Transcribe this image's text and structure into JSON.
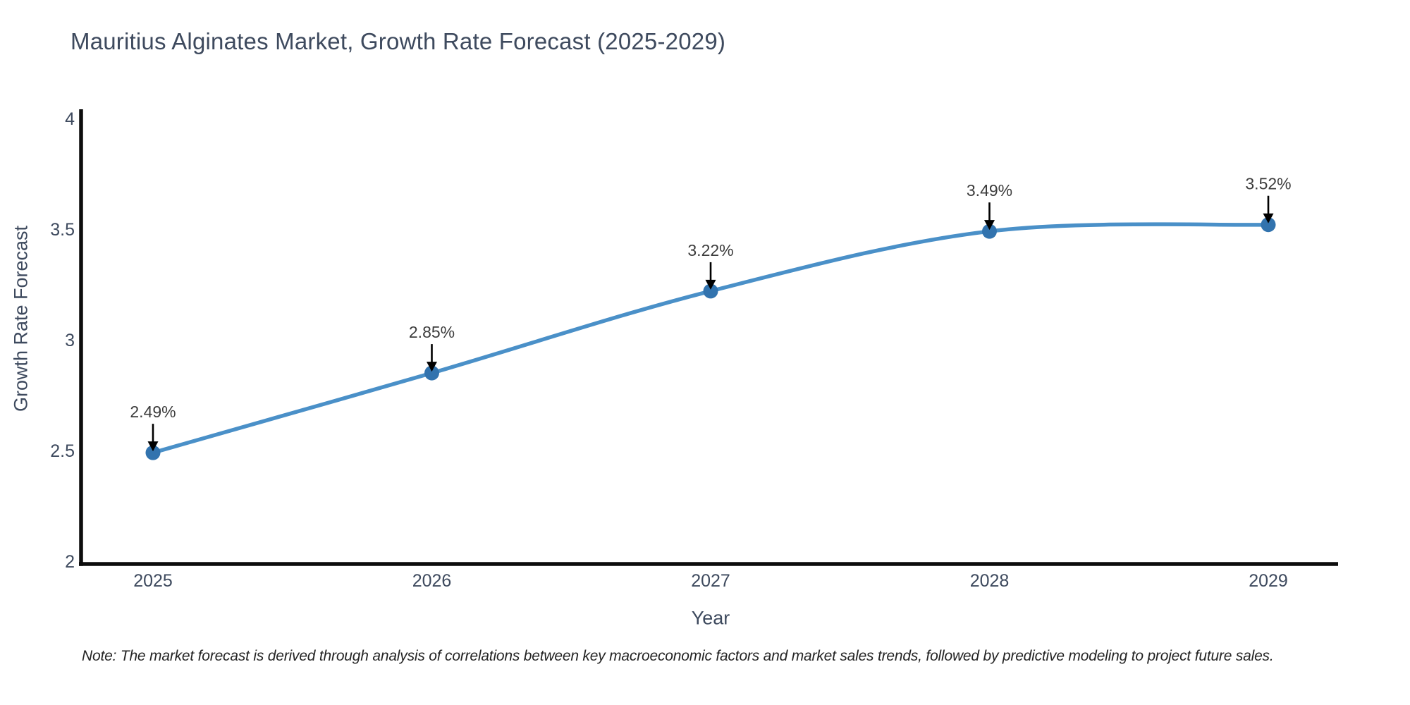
{
  "title": "Mauritius Alginates Market, Growth Rate Forecast (2025-2029)",
  "note": "Note: The market forecast is derived through analysis of correlations between key macroeconomic factors and market sales trends, followed by predictive modeling to project future sales.",
  "chart_data": {
    "type": "line",
    "x": [
      2025,
      2026,
      2027,
      2028,
      2029
    ],
    "values": [
      2.49,
      2.85,
      3.22,
      3.49,
      3.52
    ],
    "point_labels": [
      "2.49%",
      "2.85%",
      "3.22%",
      "3.49%",
      "3.52%"
    ],
    "xtick_labels": [
      "2025",
      "2026",
      "2027",
      "2028",
      "2029"
    ],
    "ytick_values": [
      2,
      2.5,
      3,
      3.5,
      4
    ],
    "ytick_labels": [
      "2",
      "2.5",
      "3",
      "3.5",
      "4"
    ],
    "title": "Mauritius Alginates Market, Growth Rate Forecast (2025-2029)",
    "xlabel": "Year",
    "ylabel": "Growth Rate Forecast",
    "ylim": [
      2,
      4
    ],
    "grid": false,
    "legend": "none",
    "smoothing": true,
    "annotations": "value labels with black down-arrows above each point",
    "colors": {
      "line": "#4a90c8",
      "marker": "#3273ae",
      "axis": "#0d0d0d",
      "heading_text": "#3e4a5e",
      "tick_text": "#3e4a5e",
      "annotation_text": "#3c3c3c",
      "note_text": "#242424",
      "arrow": "#000000",
      "background": "#ffffff"
    }
  }
}
